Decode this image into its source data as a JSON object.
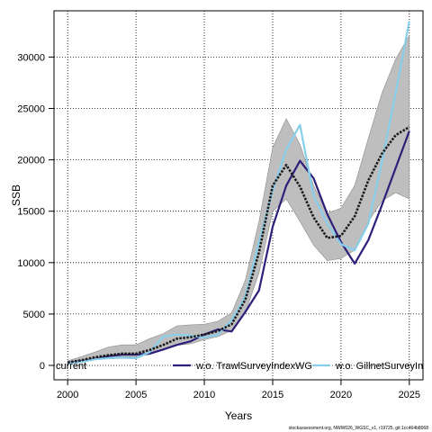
{
  "footnote": "stockassessment.org, NWW026_WGSC_v1, r19725, git:1cc464b8068",
  "chart_data": {
    "type": "line",
    "title": "",
    "xlabel": "Years",
    "ylabel": "SSB",
    "xlim": [
      1999,
      2026
    ],
    "ylim": [
      -1400,
      34500
    ],
    "xticks": [
      2000,
      2005,
      2010,
      2015,
      2020,
      2025
    ],
    "yticks": [
      0,
      5000,
      10000,
      15000,
      20000,
      25000,
      30000
    ],
    "grid": true,
    "legend_position": "bottom",
    "x": [
      2000,
      2001,
      2002,
      2003,
      2004,
      2005,
      2006,
      2007,
      2008,
      2009,
      2010,
      2011,
      2012,
      2013,
      2014,
      2015,
      2016,
      2017,
      2018,
      2019,
      2020,
      2021,
      2022,
      2023,
      2024,
      2025
    ],
    "band": {
      "name": "current",
      "color": "#bebebe",
      "lower": [
        150,
        300,
        550,
        750,
        850,
        850,
        1050,
        1500,
        1950,
        2100,
        2500,
        2800,
        3400,
        5100,
        9000,
        15000,
        16200,
        14000,
        11700,
        10200,
        10400,
        11200,
        14000,
        16000,
        16800,
        16200
      ],
      "upper": [
        450,
        850,
        1300,
        1800,
        2000,
        2000,
        2600,
        3100,
        3850,
        3950,
        4000,
        4300,
        5100,
        8300,
        14000,
        21200,
        24000,
        21500,
        17500,
        14800,
        15300,
        17500,
        22100,
        26500,
        29800,
        32100
      ]
    },
    "series": [
      {
        "name": "current",
        "color": "#1a1a1a",
        "dash": "dotted-thick",
        "values": [
          300,
          500,
          800,
          1000,
          1150,
          1150,
          1500,
          2000,
          2600,
          2750,
          3000,
          3350,
          4000,
          6400,
          11000,
          17500,
          19500,
          17400,
          14400,
          12400,
          12600,
          14500,
          18000,
          20600,
          22400,
          23200
        ]
      },
      {
        "name": "w.o. TrawlSurveyIndexWG",
        "color": "#2e1f7a",
        "dash": "solid",
        "values": [
          250,
          400,
          650,
          900,
          1050,
          1050,
          1150,
          1550,
          2000,
          2350,
          3000,
          3500,
          3300,
          5200,
          7300,
          13500,
          17500,
          19900,
          18200,
          14700,
          12000,
          9900,
          12200,
          15600,
          19200,
          22800
        ]
      },
      {
        "name": "w.o. GillnetSurveyIndexWG",
        "color": "#87ceeb",
        "dash": "solid",
        "values": [
          200,
          350,
          600,
          700,
          750,
          700,
          1300,
          2800,
          3000,
          2900,
          2700,
          3000,
          4400,
          6700,
          12000,
          17000,
          21000,
          23400,
          16500,
          13800,
          11800,
          11200,
          13800,
          19800,
          26500,
          33500
        ]
      }
    ]
  }
}
